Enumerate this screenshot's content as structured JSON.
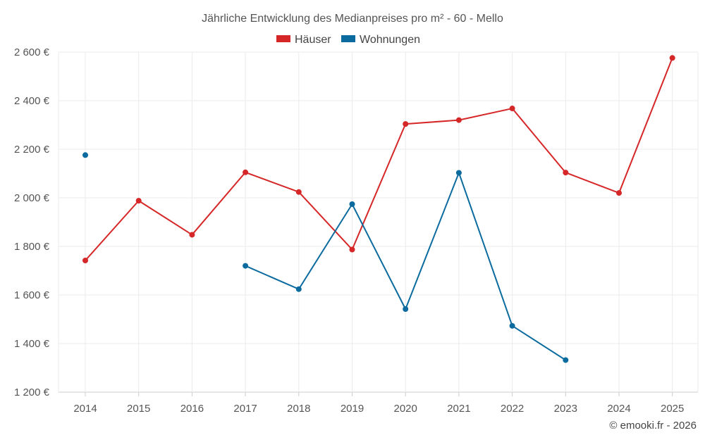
{
  "chart_data": {
    "type": "line",
    "title": "Jährliche Entwicklung des Medianpreises pro m² - 60 - Mello",
    "categories": [
      "2014",
      "2015",
      "2016",
      "2017",
      "2018",
      "2019",
      "2020",
      "2021",
      "2022",
      "2023",
      "2024",
      "2025"
    ],
    "series": [
      {
        "name": "Häuser",
        "color": "#d62728",
        "values": [
          1742,
          1988,
          1848,
          2105,
          2024,
          1787,
          2304,
          2320,
          2368,
          2104,
          2020,
          2576
        ]
      },
      {
        "name": "Wohnungen",
        "color": "#0b6b9e",
        "values": [
          2176,
          null,
          null,
          1720,
          1624,
          1974,
          1542,
          2103,
          1473,
          1332,
          null,
          null
        ]
      }
    ],
    "y_ticks": [
      "1 200 €",
      "1 400 €",
      "1 600 €",
      "1 800 €",
      "2 000 €",
      "2 200 €",
      "2 400 €",
      "2 600 €"
    ],
    "y_tick_values": [
      1200,
      1400,
      1600,
      1800,
      2000,
      2200,
      2400,
      2600
    ],
    "ylim": [
      1200,
      2600
    ],
    "xlabel": "",
    "ylabel": "",
    "legend_position": "top-center",
    "grid": true
  },
  "credit": "© emooki.fr - 2026"
}
